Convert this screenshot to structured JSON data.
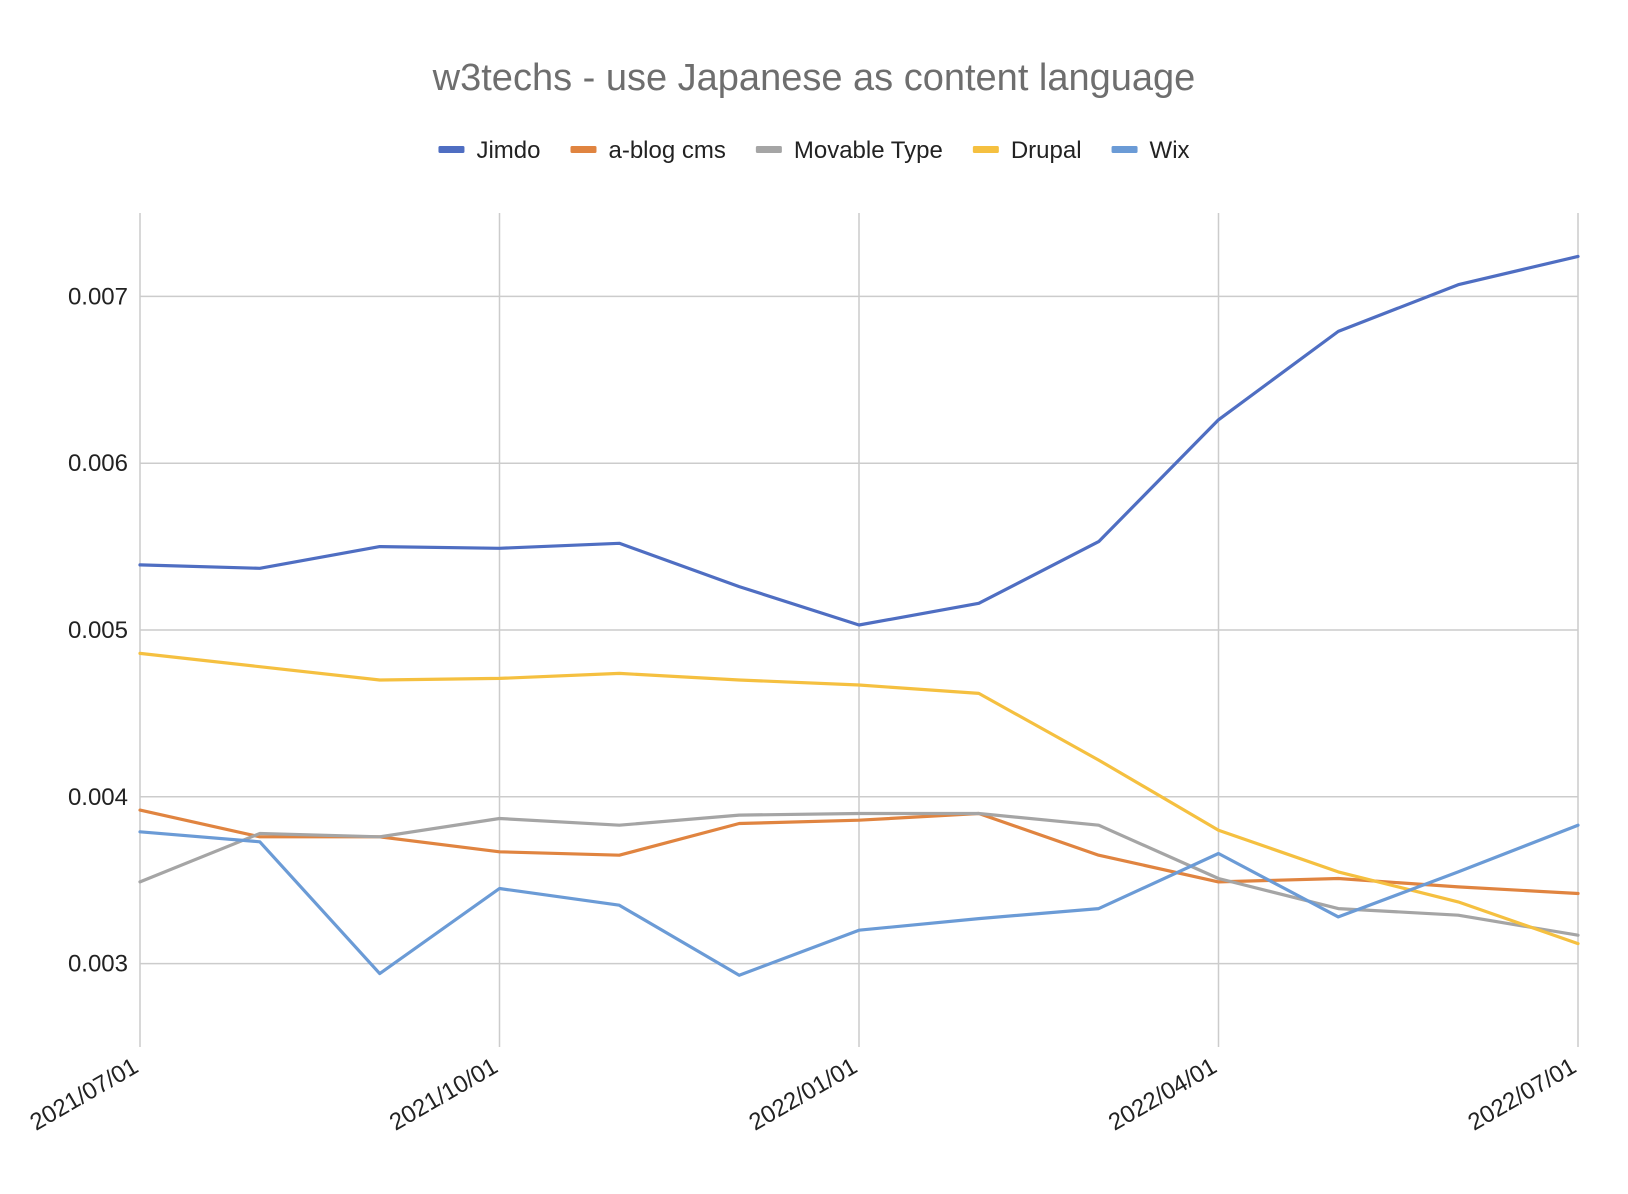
{
  "chart_data": {
    "type": "line",
    "title": "w3techs - use Japanese as content language",
    "xlabel": "",
    "ylabel": "",
    "legend_position": "top",
    "grid": true,
    "ylim": [
      0.0025,
      0.0075
    ],
    "yticks": [
      "0.003",
      "0.004",
      "0.005",
      "0.006",
      "0.007"
    ],
    "ytick_values": [
      0.003,
      0.004,
      0.005,
      0.006,
      0.007
    ],
    "x": [
      "2021/07/01",
      "2021/08/01",
      "2021/09/01",
      "2021/10/01",
      "2021/11/01",
      "2021/12/01",
      "2022/01/01",
      "2022/02/01",
      "2022/03/01",
      "2022/04/01",
      "2022/05/01",
      "2022/06/01",
      "2022/07/01"
    ],
    "xticks": [
      "2021/07/01",
      "2021/10/01",
      "2022/01/01",
      "2022/04/01",
      "2022/07/01"
    ],
    "series": [
      {
        "name": "Jimdo",
        "color": "#4f6ec2",
        "values": [
          0.00539,
          0.00537,
          0.0055,
          0.00549,
          0.00552,
          0.00526,
          0.00503,
          0.00516,
          0.00553,
          0.00626,
          0.00679,
          0.00707,
          0.00724
        ]
      },
      {
        "name": "a-blog cms",
        "color": "#e08440",
        "values": [
          0.00392,
          0.00376,
          0.00376,
          0.00367,
          0.00365,
          0.00384,
          0.00386,
          0.0039,
          0.00365,
          0.00349,
          0.00351,
          0.00346,
          0.00342
        ]
      },
      {
        "name": "Movable Type",
        "color": "#a5a5a5",
        "values": [
          0.00349,
          0.00378,
          0.00376,
          0.00387,
          0.00383,
          0.00389,
          0.0039,
          0.0039,
          0.00383,
          0.00351,
          0.00333,
          0.00329,
          0.00317
        ]
      },
      {
        "name": "Drupal",
        "color": "#f5c040",
        "values": [
          0.00486,
          0.00478,
          0.0047,
          0.00471,
          0.00474,
          0.0047,
          0.00467,
          0.00462,
          0.00422,
          0.0038,
          0.00355,
          0.00337,
          0.00312
        ]
      },
      {
        "name": "Wix",
        "color": "#6b9bd6",
        "values": [
          0.00379,
          0.00373,
          0.00294,
          0.00345,
          0.00335,
          0.00293,
          0.0032,
          0.00327,
          0.00333,
          0.00366,
          0.00328,
          0.00355,
          0.00383
        ]
      }
    ]
  }
}
